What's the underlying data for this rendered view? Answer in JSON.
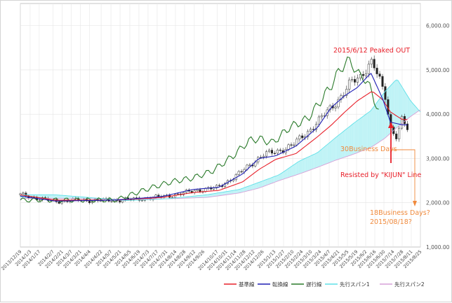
{
  "chart_data": {
    "type": "line",
    "title": "",
    "xlabel": "",
    "ylabel": "",
    "ylim": [
      1000,
      6500
    ],
    "yticks": [
      1000,
      2000,
      3000,
      4000,
      5000,
      6000
    ],
    "ytick_labels": [
      "1,000.00",
      "2,000.00",
      "3,000.00",
      "4,000.00",
      "5,000.00",
      "6,000.00"
    ],
    "date_start": "2013/12/19",
    "date_end": "2015/8/25",
    "xtick_labels": [
      "2013/12/19",
      "2014/1/3",
      "2014/1/17",
      "2014/2/7",
      "2014/2/21",
      "2014/3/7",
      "2014/3/21",
      "2014/4/4",
      "2014/4/22",
      "2014/5/7",
      "2014/5/21",
      "2014/6/5",
      "2014/6/19",
      "2014/7/3",
      "2014/7/17",
      "2014/7/31",
      "2014/8/14",
      "2014/8/28",
      "2014/9/12",
      "2014/9/26",
      "2014/10/17",
      "2014/10/31",
      "2014/11/14",
      "2014/11/28",
      "2014/12/12",
      "2014/12/26",
      "2015/1/13",
      "2015/1/27",
      "2015/2/10",
      "2015/2/24",
      "2015/3/10",
      "2015/3/24",
      "2015/4/7",
      "2015/4/21",
      "2015/5/5",
      "2015/5/19",
      "2015/6/2",
      "2015/6/16",
      "2015/6/30",
      "2015/7/14",
      "2015/7/28",
      "2015/8/11",
      "2015/8/25"
    ],
    "grid": true,
    "legend_position": "bottom-right",
    "series": [
      {
        "name": "基準線",
        "color": "#e8202a",
        "x": [
          "2013/12/19",
          "2014/2/10",
          "2014/5/15",
          "2014/7/25",
          "2014/9/10",
          "2014/10/20",
          "2014/11/25",
          "2014/12/20",
          "2015/1/15",
          "2015/2/15",
          "2015/3/20",
          "2015/4/10",
          "2015/5/1",
          "2015/5/20",
          "2015/6/12",
          "2015/6/28",
          "2015/7/10",
          "2015/7/28",
          "2015/8/5"
        ],
        "y": [
          2180,
          2060,
          2060,
          2120,
          2230,
          2280,
          2470,
          2750,
          2980,
          3110,
          3490,
          3750,
          4050,
          4300,
          4520,
          4330,
          4050,
          3880,
          3880
        ]
      },
      {
        "name": "転換線",
        "color": "#1f1fb4",
        "x": [
          "2013/12/19",
          "2014/2/10",
          "2014/5/15",
          "2014/7/25",
          "2014/9/10",
          "2014/10/20",
          "2014/11/25",
          "2014/12/20",
          "2015/1/15",
          "2015/2/15",
          "2015/3/20",
          "2015/4/10",
          "2015/5/1",
          "2015/5/20",
          "2015/6/10",
          "2015/6/28",
          "2015/7/10",
          "2015/7/28",
          "2015/8/5"
        ],
        "y": [
          2150,
          2040,
          2060,
          2140,
          2300,
          2350,
          2650,
          3000,
          3060,
          3280,
          3700,
          4150,
          4420,
          4600,
          4930,
          4350,
          3820,
          3760,
          3760
        ]
      },
      {
        "name": "遅行線",
        "color": "#2a7a2a",
        "x": [
          "2013/12/19",
          "2014/2/10",
          "2014/5/15",
          "2014/6/10",
          "2014/7/10",
          "2014/8/10",
          "2014/9/10",
          "2014/10/10",
          "2014/11/10",
          "2014/12/5",
          "2014/12/20",
          "2015/1/10",
          "2015/2/5",
          "2015/3/5",
          "2015/3/25",
          "2015/4/10",
          "2015/4/25",
          "2015/5/10",
          "2015/5/20",
          "2015/5/30",
          "2015/6/10",
          "2015/6/22"
        ],
        "y": [
          2060,
          2060,
          2060,
          2200,
          2350,
          2480,
          2560,
          2720,
          3050,
          3400,
          3450,
          3350,
          3700,
          3900,
          4300,
          4650,
          5050,
          5230,
          4900,
          4850,
          4550,
          4050
        ]
      },
      {
        "name": "先行スパン1",
        "color": "#5fe0e8",
        "x": [
          "2013/12/19",
          "2014/2/10",
          "2014/6/1",
          "2014/8/1",
          "2014/10/1",
          "2014/11/20",
          "2014/12/20",
          "2015/1/20",
          "2015/2/20",
          "2015/3/20",
          "2015/4/15",
          "2015/5/15",
          "2015/6/10",
          "2015/7/1",
          "2015/7/20",
          "2015/8/10",
          "2015/8/25"
        ],
        "y": [
          2180,
          2180,
          2050,
          2090,
          2180,
          2300,
          2460,
          2630,
          2940,
          3130,
          3450,
          3800,
          4080,
          4500,
          4800,
          4300,
          4050
        ]
      },
      {
        "name": "先行スパン2",
        "color": "#d7a0d8",
        "x": [
          "2013/12/19",
          "2014/2/10",
          "2014/6/1",
          "2014/8/1",
          "2014/10/1",
          "2014/11/20",
          "2014/12/20",
          "2015/1/20",
          "2015/2/20",
          "2015/3/20",
          "2015/4/15",
          "2015/5/15",
          "2015/6/10",
          "2015/7/1",
          "2015/7/20",
          "2015/8/10",
          "2015/8/25"
        ],
        "y": [
          2100,
          2100,
          2080,
          2090,
          2120,
          2220,
          2330,
          2500,
          2650,
          2800,
          2950,
          3100,
          3250,
          3450,
          3700,
          3950,
          4100
        ]
      }
    ],
    "price": {
      "name": "",
      "x": [
        "2013/12/19",
        "2014/1/15",
        "2014/2/10",
        "2014/3/15",
        "2014/4/15",
        "2014/5/15",
        "2014/6/15",
        "2014/7/15",
        "2014/8/15",
        "2014/9/15",
        "2014/10/15",
        "2014/11/15",
        "2014/12/10",
        "2014/12/26",
        "2015/1/15",
        "2015/2/10",
        "2015/3/5",
        "2015/3/25",
        "2015/4/10",
        "2015/4/25",
        "2015/5/10",
        "2015/5/25",
        "2015/6/5",
        "2015/6/12",
        "2015/6/22",
        "2015/7/2",
        "2015/7/10",
        "2015/7/20",
        "2015/7/28",
        "2015/8/5"
      ],
      "y": [
        2180,
        2100,
        2030,
        2060,
        2050,
        2060,
        2080,
        2120,
        2180,
        2280,
        2330,
        2600,
        2900,
        3080,
        3150,
        3300,
        3600,
        3900,
        4150,
        4400,
        4700,
        4850,
        5100,
        5200,
        4800,
        4400,
        3700,
        3500,
        3900,
        3650
      ]
    },
    "annotations": [
      {
        "text": "2015/6/12  Peaked OUT",
        "color": "#e8202a"
      },
      {
        "text": "30Business Days",
        "color": "#f08a3c"
      },
      {
        "text": "Resisted by \"KIJUN\" Line",
        "color": "#e8202a"
      },
      {
        "text": "18Business Days?",
        "color": "#f08a3c"
      },
      {
        "text": "2015/08/18?",
        "color": "#f08a3c"
      }
    ]
  }
}
